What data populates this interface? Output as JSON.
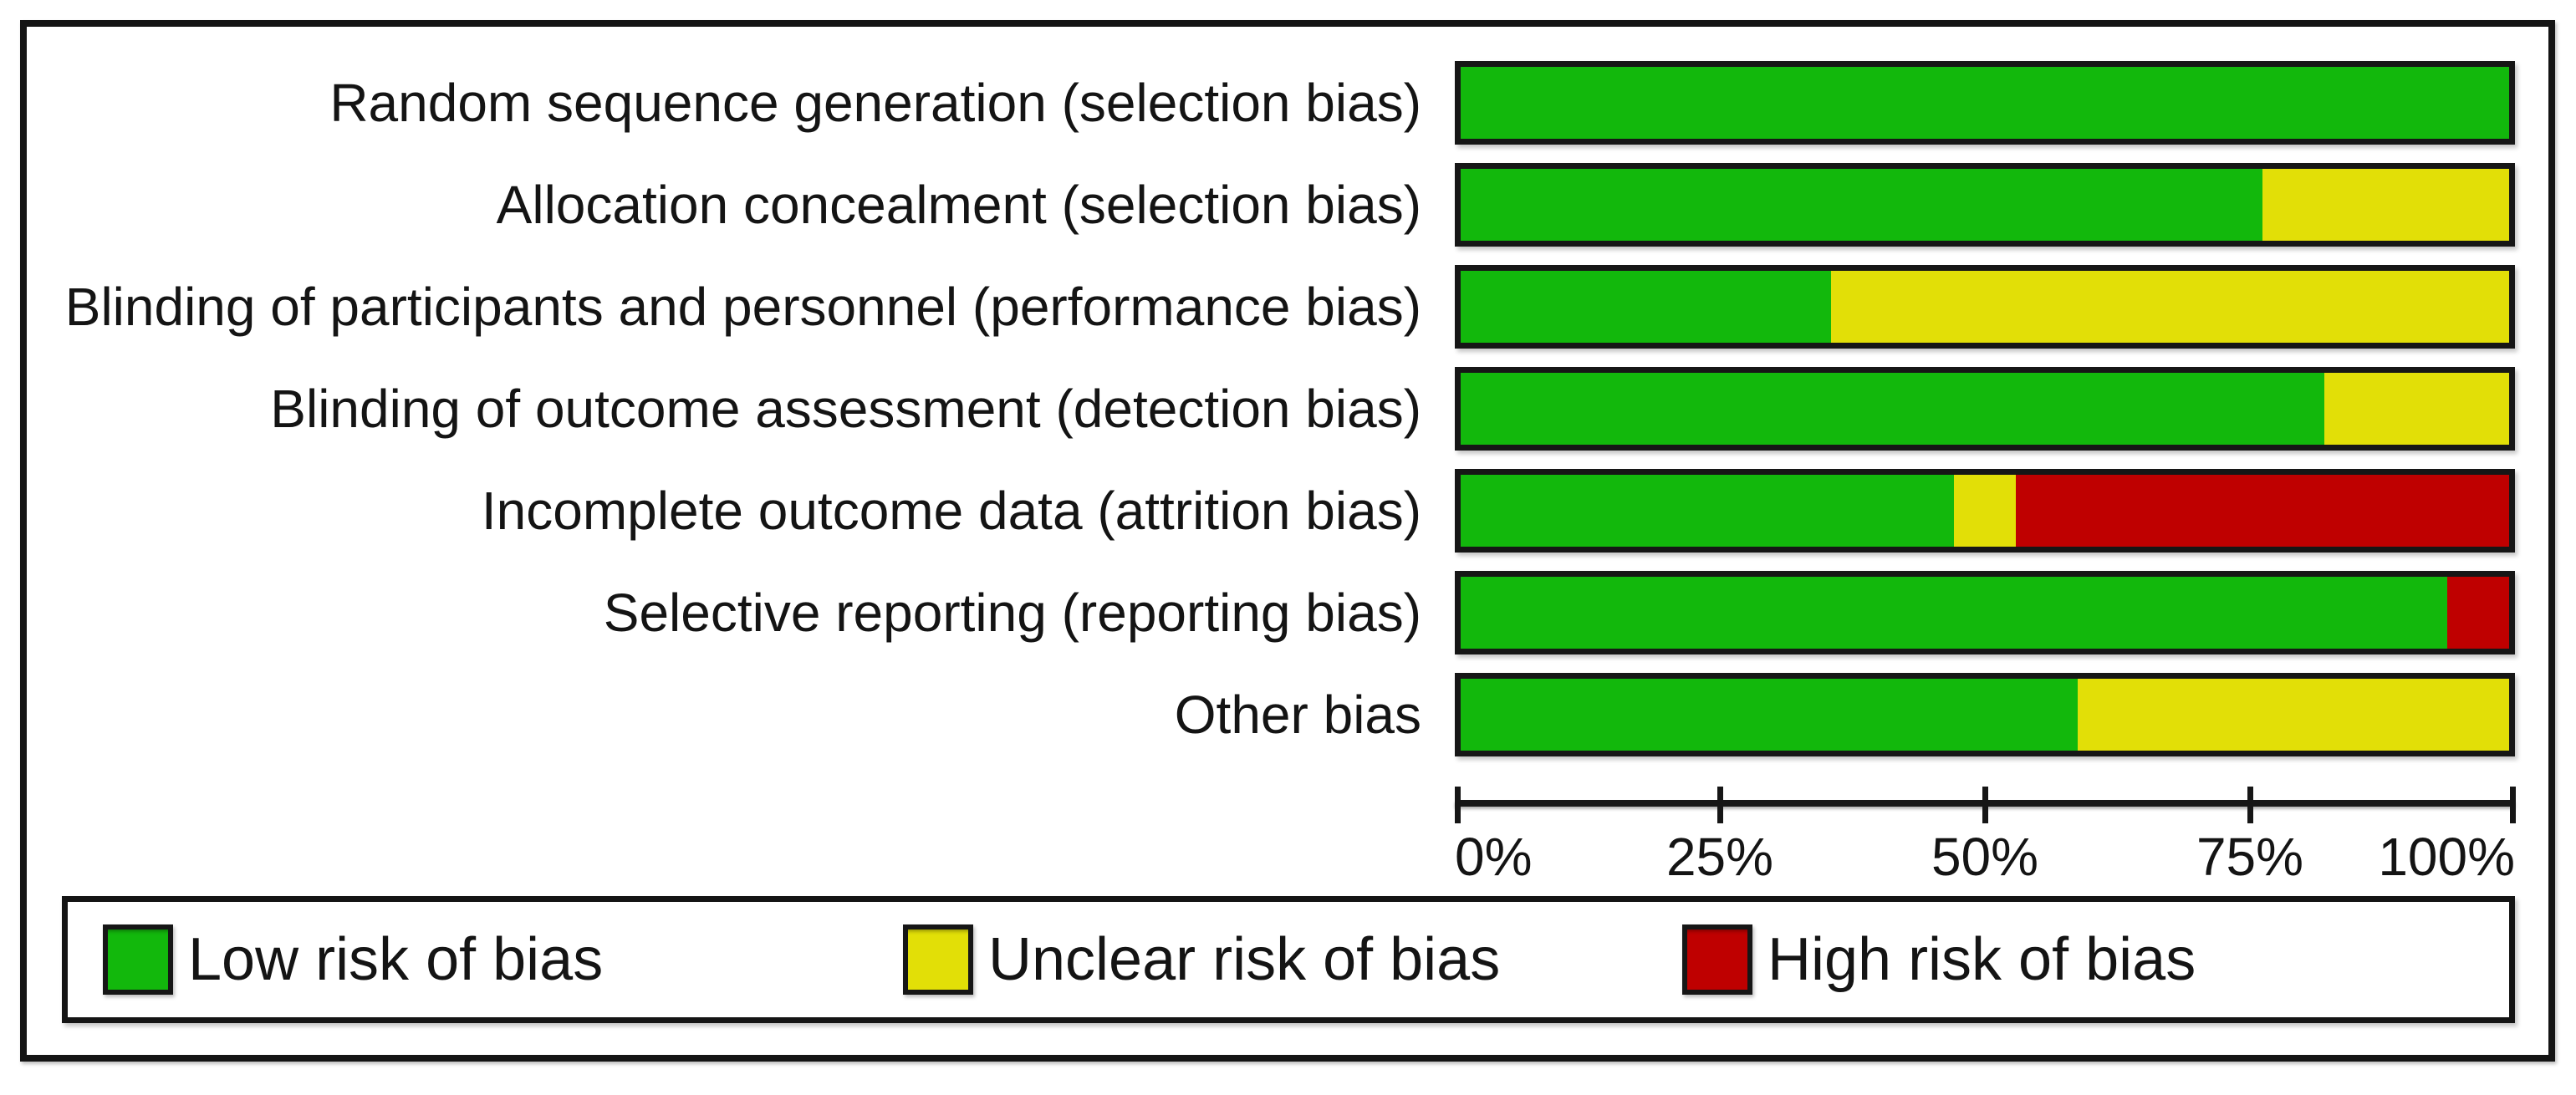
{
  "chart_data": {
    "type": "bar",
    "variant": "horizontal-stacked-percentage",
    "title": "",
    "xlabel": "",
    "ylabel": "",
    "categories": [
      "Random sequence generation (selection bias)",
      "Allocation concealment (selection bias)",
      "Blinding of participants and personnel (performance bias)",
      "Blinding of outcome assessment (detection bias)",
      "Incomplete outcome data (attrition bias)",
      "Selective reporting (reporting bias)",
      "Other bias"
    ],
    "series": [
      {
        "name": "Low risk of bias",
        "color": "#12B80C",
        "values_pct": [
          100,
          76.47,
          35.29,
          82.35,
          47.06,
          94.12,
          58.82
        ]
      },
      {
        "name": "Unclear risk of bias",
        "color": "#E2DF07",
        "values_pct": [
          0,
          23.53,
          64.71,
          17.65,
          5.88,
          0,
          41.18
        ]
      },
      {
        "name": "High risk of bias",
        "color": "#BF0000",
        "values_pct": [
          0,
          0,
          0,
          0,
          47.06,
          5.88,
          0
        ]
      }
    ],
    "x_axis": {
      "range": [
        0,
        100
      ],
      "ticks": [
        {
          "value": 0,
          "label": "0%"
        },
        {
          "value": 25,
          "label": "25%"
        },
        {
          "value": 50,
          "label": "50%"
        },
        {
          "value": 75,
          "label": "75%"
        },
        {
          "value": 100,
          "label": "100%"
        }
      ],
      "grid": false
    },
    "legend": {
      "position": "bottom-box",
      "items": [
        "Low risk of bias",
        "Unclear risk of bias",
        "High risk of bias"
      ]
    },
    "frame_color": "#141414",
    "background_color": "#FFFFFF"
  }
}
